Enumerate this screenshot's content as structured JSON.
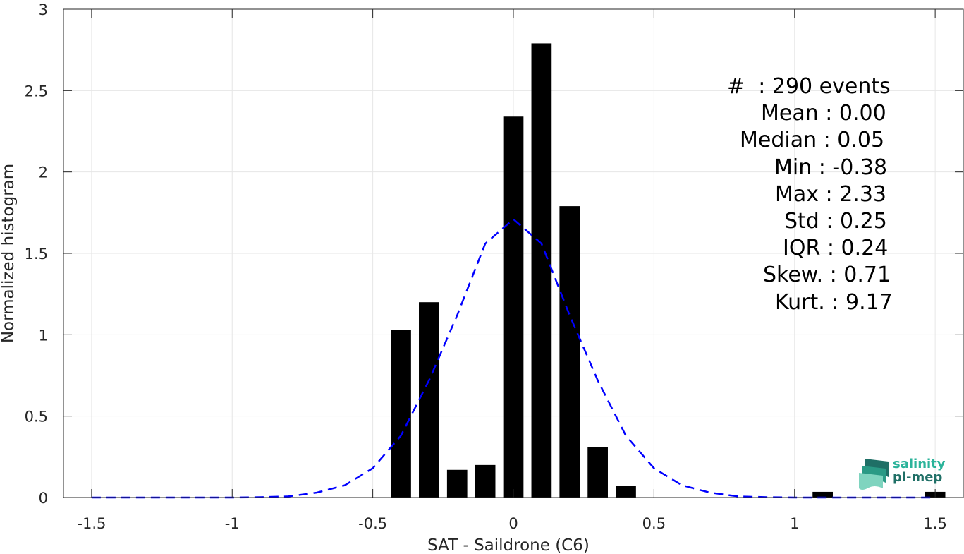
{
  "chart_data": {
    "type": "bar",
    "xlabel": "SAT - Saildrone (C6)",
    "ylabel": "Normalized histogram",
    "xlim": [
      -1.6,
      1.6
    ],
    "ylim": [
      0,
      3
    ],
    "xticks": [
      -1.5,
      -1,
      -0.5,
      0,
      0.5,
      1,
      1.5
    ],
    "xtick_labels": [
      "-1.5",
      "-1",
      "-0.5",
      "0",
      "0.5",
      "1",
      "1.5"
    ],
    "yticks": [
      0,
      0.5,
      1,
      1.5,
      2,
      2.5,
      3
    ],
    "ytick_labels": [
      "0",
      "0.5",
      "1",
      "1.5",
      "2",
      "2.5",
      "3"
    ],
    "grid": true,
    "bars": {
      "color": "#000000",
      "bin_width": 0.1,
      "x": [
        -0.4,
        -0.3,
        -0.2,
        -0.1,
        0.0,
        0.1,
        0.2,
        0.3,
        0.4,
        1.1,
        1.5
      ],
      "values": [
        1.03,
        1.2,
        0.17,
        0.2,
        2.34,
        2.79,
        1.79,
        0.31,
        0.07,
        0.035,
        0.035
      ]
    },
    "fit_curve": {
      "style": "dashed",
      "color": "#0000ff",
      "x": [
        -1.5,
        -1.4,
        -1.3,
        -1.2,
        -1.1,
        -1.0,
        -0.9,
        -0.8,
        -0.7,
        -0.6,
        -0.5,
        -0.4,
        -0.3,
        -0.2,
        -0.1,
        0.0,
        0.1,
        0.2,
        0.3,
        0.4,
        0.5,
        0.6,
        0.7,
        0.8,
        0.9,
        1.0,
        1.1,
        1.2,
        1.3,
        1.4,
        1.5
      ],
      "y": [
        0,
        0,
        0,
        0,
        0,
        0,
        0.002,
        0.007,
        0.03,
        0.075,
        0.18,
        0.38,
        0.72,
        1.12,
        1.56,
        1.71,
        1.56,
        1.12,
        0.72,
        0.38,
        0.18,
        0.075,
        0.03,
        0.007,
        0.002,
        0,
        0,
        0,
        0,
        0,
        0
      ]
    },
    "stats": [
      "#  : 290 events",
      "Mean : 0.00",
      "Median : 0.05",
      "Min : -0.38",
      "Max : 2.33",
      "Std : 0.25",
      "IQR : 0.24",
      "Skew. : 0.71",
      "Kurt. : 9.17"
    ]
  },
  "logo": {
    "line1": "salinity",
    "line2": "pi-mep"
  },
  "colors": {
    "grid": "#e6e6e6",
    "axis": "#262626",
    "bars": "#000000",
    "fit": "#0000ff",
    "logo_light": "#2bb39a",
    "logo_dark": "#1f6f66"
  }
}
